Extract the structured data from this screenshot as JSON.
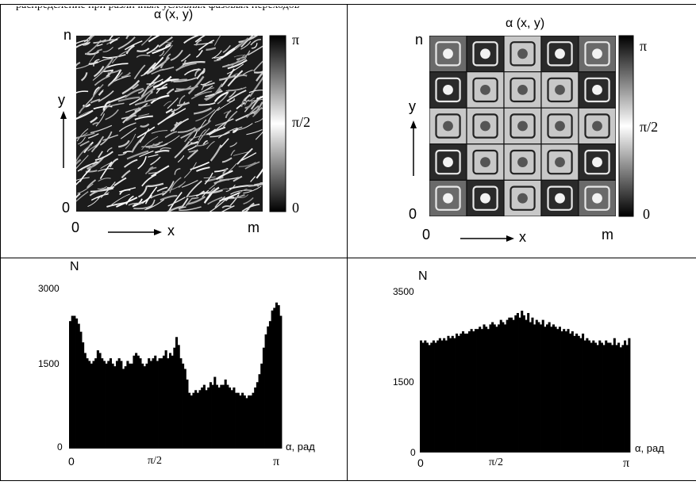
{
  "caption_fragment": "распределение при различных условиях фазовых переходов",
  "chart_data": [
    {
      "type": "heatmap",
      "title": "α (x, y)",
      "xlabel": "x",
      "ylabel": "y",
      "x_ticks": [
        "0",
        "m"
      ],
      "y_ticks": [
        "0",
        "n"
      ],
      "colorbar_ticks": [
        "π",
        "π/2",
        "0"
      ],
      "colorbar_range": [
        0,
        3.1416
      ],
      "colormap": [
        "#000000",
        "#ffffff"
      ],
      "pattern": "disordered, diagonal stripes"
    },
    {
      "type": "heatmap",
      "title": "α (x, y)",
      "xlabel": "x",
      "ylabel": "y",
      "x_ticks": [
        "0",
        "m"
      ],
      "y_ticks": [
        "0",
        "n"
      ],
      "colorbar_ticks": [
        "π",
        "π/2",
        "0"
      ],
      "colorbar_range": [
        0,
        3.1416
      ],
      "colormap": [
        "#000000",
        "#ffffff"
      ],
      "pattern": "regular 5x5 cellular pattern"
    },
    {
      "type": "bar",
      "ylabel": "N",
      "xlabel": "α, рад",
      "x_ticks": [
        "0",
        "π/2",
        "π"
      ],
      "y_ticks": [
        "0",
        "1500",
        "3000"
      ],
      "xlim": [
        0,
        3.1416
      ],
      "ylim": [
        0,
        3000
      ],
      "bin_count": 100,
      "values": [
        2400,
        2500,
        2500,
        2450,
        2350,
        2200,
        2000,
        1800,
        1700,
        1650,
        1600,
        1650,
        1700,
        1850,
        1800,
        1700,
        1650,
        1600,
        1650,
        1700,
        1600,
        1550,
        1650,
        1700,
        1650,
        1500,
        1550,
        1650,
        1600,
        1600,
        1750,
        1800,
        1750,
        1700,
        1600,
        1550,
        1600,
        1700,
        1650,
        1700,
        1750,
        1650,
        1700,
        1700,
        1750,
        1850,
        1700,
        1800,
        1750,
        1900,
        2100,
        1950,
        1700,
        1600,
        1500,
        1300,
        1050,
        1000,
        1050,
        1100,
        1050,
        1100,
        1150,
        1200,
        1100,
        1150,
        1250,
        1200,
        1350,
        1200,
        1150,
        1200,
        1200,
        1300,
        1200,
        1150,
        1100,
        1150,
        1050,
        1050,
        1000,
        1050,
        1000,
        950,
        1000,
        1000,
        1050,
        1150,
        1250,
        1400,
        1600,
        1900,
        2150,
        2300,
        2400,
        2600,
        2650,
        2750,
        2700,
        2500
      ]
    },
    {
      "type": "bar",
      "ylabel": "N",
      "xlabel": "α, рад",
      "x_ticks": [
        "0",
        "π/2",
        "π"
      ],
      "y_ticks": [
        "0",
        "1500",
        "3500"
      ],
      "xlim": [
        0,
        3.1416
      ],
      "ylim": [
        0,
        3500
      ],
      "bin_count": 100,
      "values": [
        2450,
        2400,
        2450,
        2400,
        2350,
        2400,
        2450,
        2400,
        2450,
        2500,
        2450,
        2500,
        2450,
        2550,
        2500,
        2550,
        2500,
        2600,
        2550,
        2600,
        2650,
        2600,
        2600,
        2650,
        2700,
        2650,
        2700,
        2700,
        2750,
        2700,
        2800,
        2750,
        2700,
        2800,
        2850,
        2800,
        2750,
        2800,
        2900,
        2850,
        2800,
        2900,
        2950,
        2950,
        2900,
        3000,
        3050,
        2950,
        3100,
        3000,
        2900,
        3050,
        2850,
        2950,
        2800,
        2900,
        2850,
        2800,
        2900,
        2750,
        2800,
        2850,
        2750,
        2800,
        2750,
        2700,
        2750,
        2650,
        2700,
        2650,
        2700,
        2600,
        2650,
        2550,
        2600,
        2550,
        2500,
        2600,
        2450,
        2500,
        2450,
        2400,
        2450,
        2400,
        2350,
        2450,
        2400,
        2350,
        2450,
        2400,
        2400,
        2350,
        2500,
        2350,
        2400,
        2300,
        2350,
        2450,
        2350,
        2500
      ]
    }
  ]
}
